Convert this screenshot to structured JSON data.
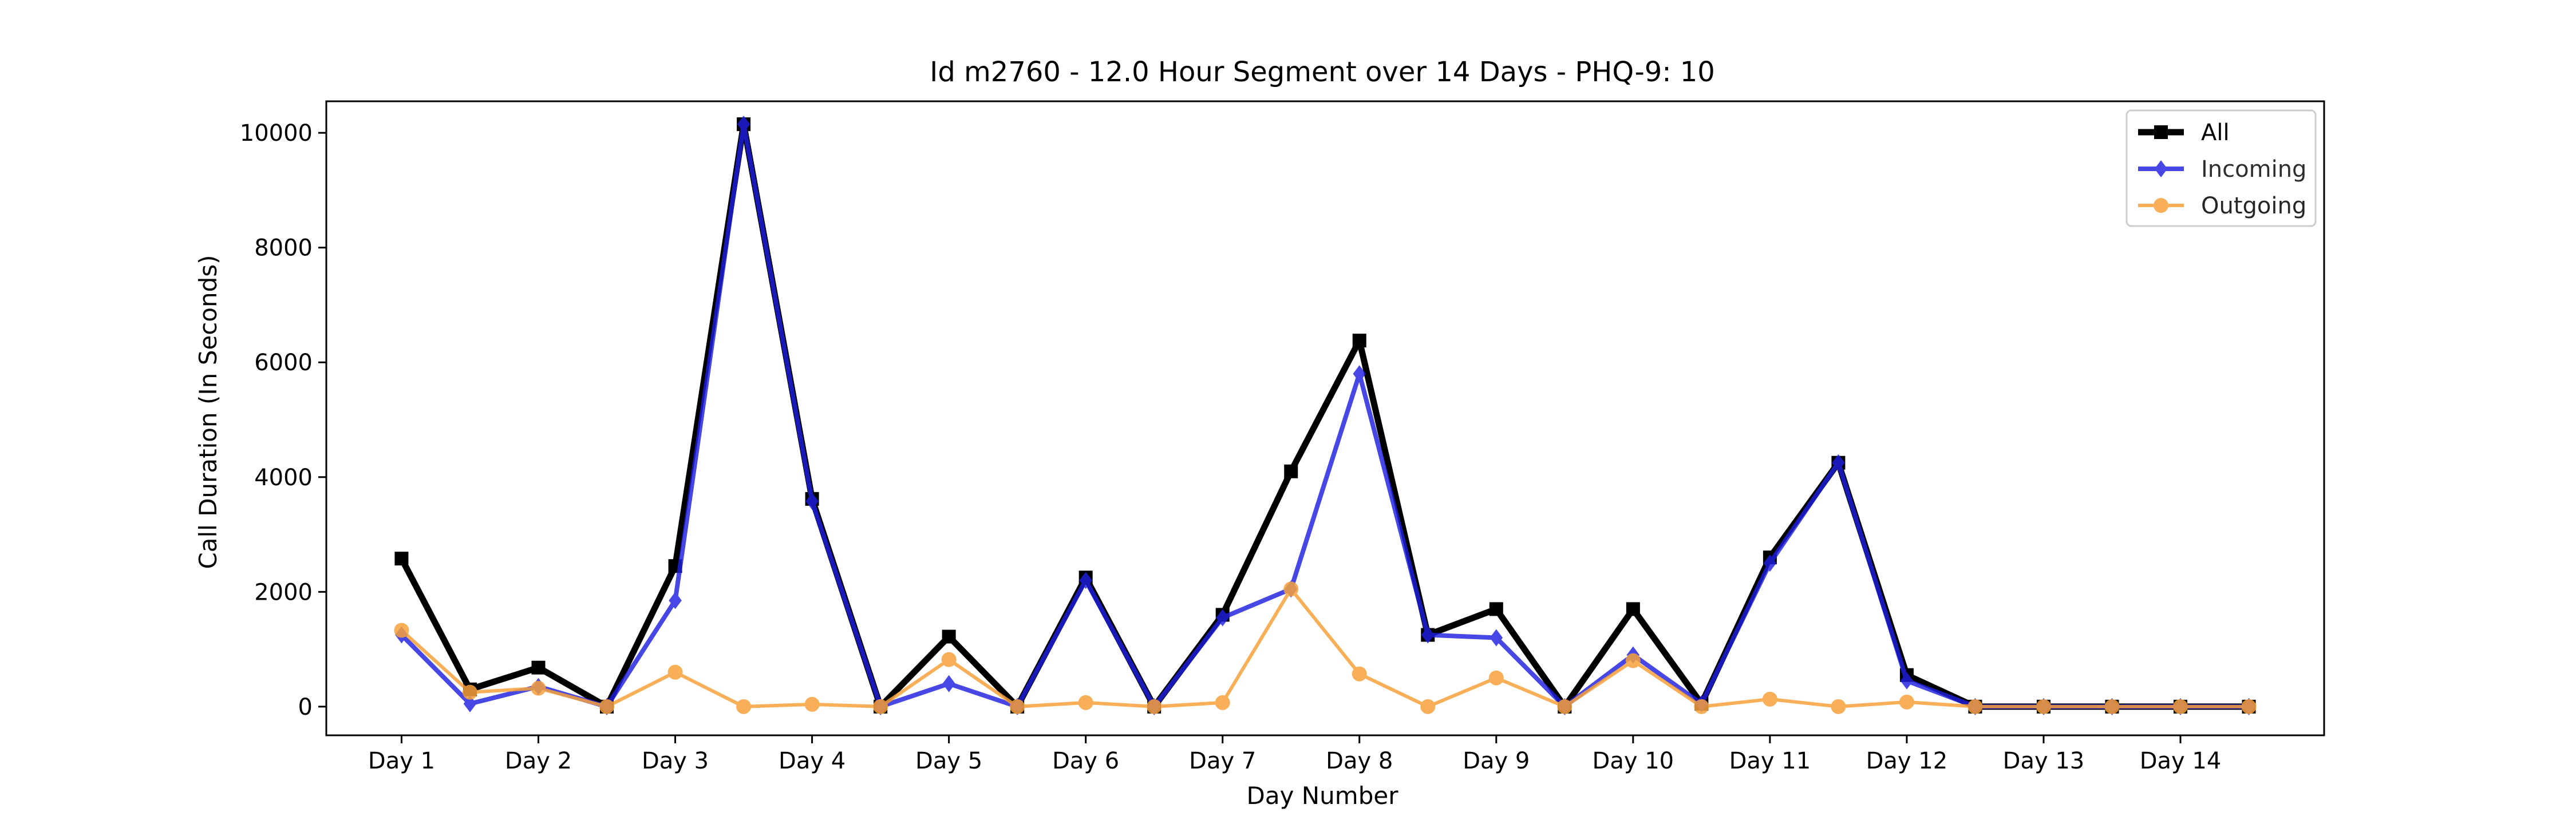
{
  "chart_data": {
    "type": "line",
    "title": "Id m2760 - 12.0 Hour Segment over 14 Days - PHQ-9: 10",
    "xlabel": "Day Number",
    "ylabel": "Call Duration (In Seconds)",
    "x": [
      1,
      1.5,
      2,
      2.5,
      3,
      3.5,
      4,
      4.5,
      5,
      5.5,
      6,
      6.5,
      7,
      7.5,
      8,
      8.5,
      9,
      9.5,
      10,
      10.5,
      11,
      11.5,
      12,
      12.5,
      13,
      13.5,
      14,
      14.5
    ],
    "xlim": [
      0.45,
      15.05
    ],
    "ylim": [
      -500,
      10550
    ],
    "x_ticks": [
      {
        "value": 1,
        "label": "Day 1"
      },
      {
        "value": 2,
        "label": "Day 2"
      },
      {
        "value": 3,
        "label": "Day 3"
      },
      {
        "value": 4,
        "label": "Day 4"
      },
      {
        "value": 5,
        "label": "Day 5"
      },
      {
        "value": 6,
        "label": "Day 6"
      },
      {
        "value": 7,
        "label": "Day 7"
      },
      {
        "value": 8,
        "label": "Day 8"
      },
      {
        "value": 9,
        "label": "Day 9"
      },
      {
        "value": 10,
        "label": "Day 10"
      },
      {
        "value": 11,
        "label": "Day 11"
      },
      {
        "value": 12,
        "label": "Day 12"
      },
      {
        "value": 13,
        "label": "Day 13"
      },
      {
        "value": 14,
        "label": "Day 14"
      }
    ],
    "y_ticks": [
      {
        "value": 0,
        "label": "0"
      },
      {
        "value": 2000,
        "label": "2000"
      },
      {
        "value": 4000,
        "label": "4000"
      },
      {
        "value": 6000,
        "label": "6000"
      },
      {
        "value": 8000,
        "label": "8000"
      },
      {
        "value": 10000,
        "label": "10000"
      }
    ],
    "grid": false,
    "legend_position": "top-right",
    "series": [
      {
        "name": "All",
        "color": "#000000",
        "marker": "square",
        "values": [
          2580,
          300,
          680,
          0,
          2450,
          10150,
          3620,
          0,
          1220,
          0,
          2250,
          0,
          1600,
          4100,
          6380,
          1250,
          1700,
          0,
          1700,
          50,
          2600,
          4250,
          550,
          0,
          0,
          0,
          0,
          0
        ]
      },
      {
        "name": "Incoming",
        "color": "#1f1fe0",
        "marker": "diamond",
        "values": [
          1250,
          50,
          350,
          0,
          1850,
          10150,
          3580,
          0,
          400,
          0,
          2200,
          0,
          1550,
          2050,
          5800,
          1250,
          1200,
          0,
          900,
          50,
          2500,
          4250,
          450,
          0,
          0,
          0,
          0,
          0
        ]
      },
      {
        "name": "Outgoing",
        "color": "#f7a23b",
        "marker": "circle",
        "values": [
          1330,
          250,
          320,
          0,
          600,
          0,
          40,
          0,
          820,
          0,
          70,
          0,
          70,
          2050,
          570,
          0,
          500,
          0,
          800,
          0,
          130,
          0,
          80,
          0,
          0,
          0,
          0,
          0
        ]
      }
    ]
  }
}
